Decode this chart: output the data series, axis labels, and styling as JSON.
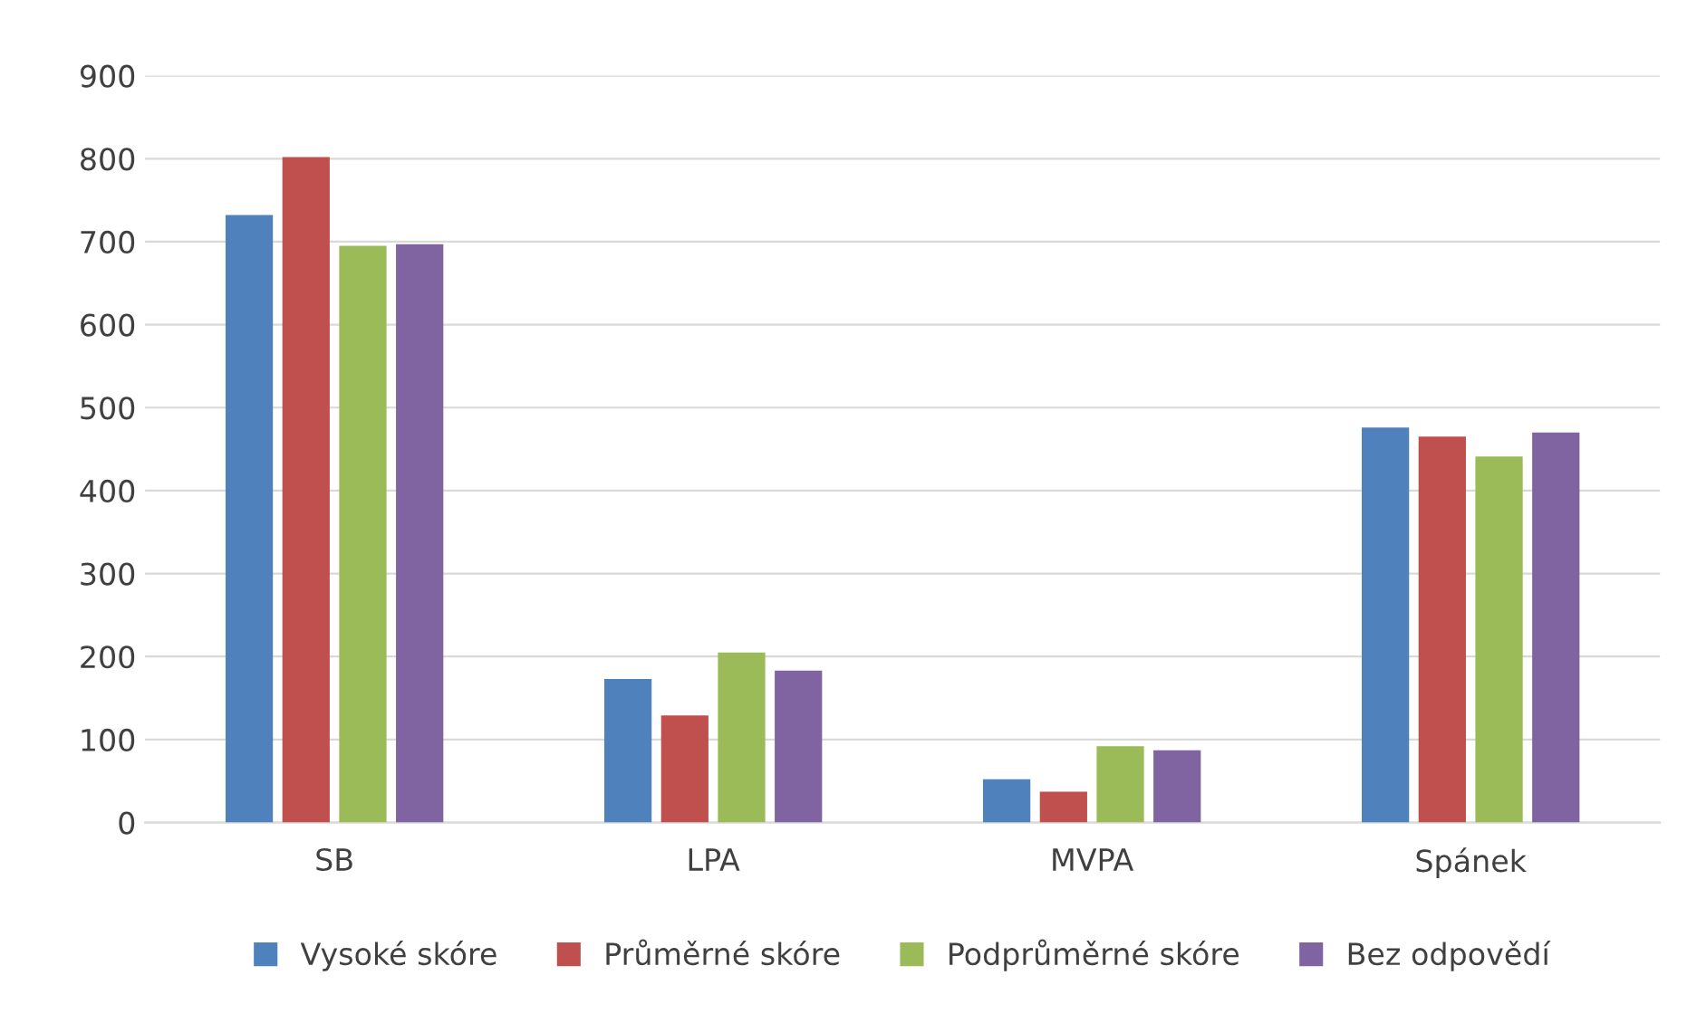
{
  "chart_data": {
    "type": "bar",
    "categories": [
      "SB",
      "LPA",
      "MVPA",
      "Spánek"
    ],
    "series": [
      {
        "name": "Vysoké skóre",
        "color": "#4f81bd",
        "values": [
          732,
          173,
          52,
          476
        ]
      },
      {
        "name": "Průměrné skóre",
        "color": "#c0504d",
        "values": [
          802,
          129,
          37,
          465
        ]
      },
      {
        "name": "Podprůměrné skóre",
        "color": "#9bbb59",
        "values": [
          695,
          205,
          92,
          441
        ]
      },
      {
        "name": "Bez odpovědí",
        "color": "#8064a2",
        "values": [
          697,
          183,
          87,
          470
        ]
      }
    ],
    "ylim": [
      0,
      900
    ],
    "yticks": [
      0,
      100,
      200,
      300,
      400,
      500,
      600,
      700,
      800,
      900
    ],
    "grid": "y",
    "legend": "bottom"
  }
}
